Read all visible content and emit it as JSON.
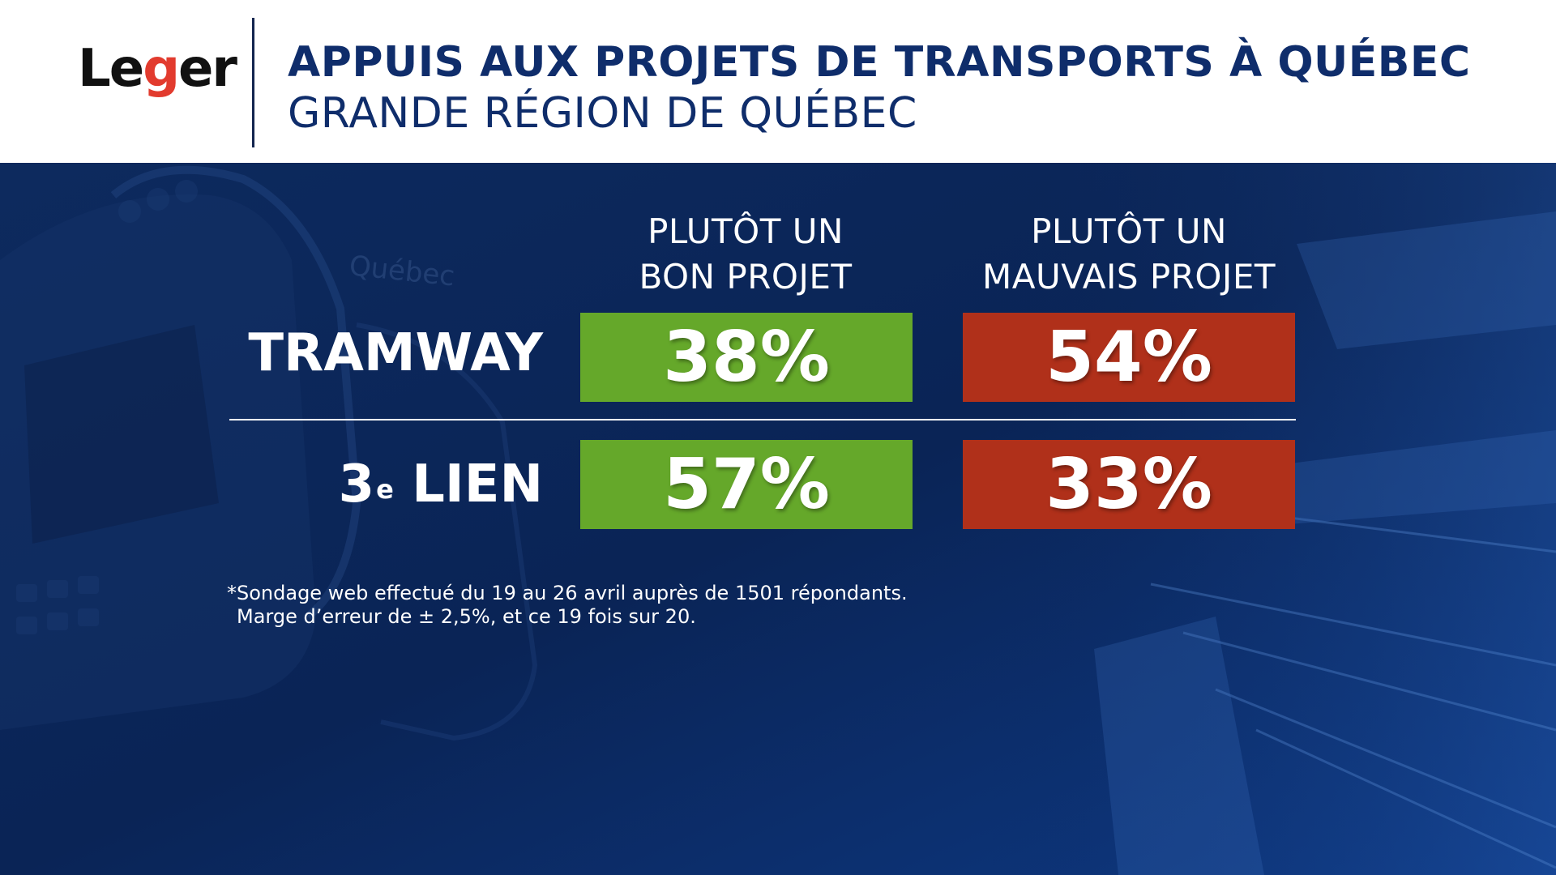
{
  "header": {
    "logo_text": "Leger",
    "logo_prefix": "Le",
    "logo_mark": "g",
    "logo_suffix": "er",
    "title": "APPUIS AUX PROJETS DE TRANSPORTS À QUÉBEC",
    "subtitle": "GRANDE RÉGION DE QUÉBEC"
  },
  "colors": {
    "good": "#65a82a",
    "bad": "#b0301a",
    "background": "#0a2456",
    "title": "#0f2d6b",
    "logo_accent": "#e23b2e"
  },
  "chart_data": {
    "type": "table",
    "title": "APPUIS AUX PROJETS DE TRANSPORTS À QUÉBEC",
    "subtitle": "GRANDE RÉGION DE QUÉBEC",
    "columns": [
      {
        "line1": "PLUTÔT UN",
        "line2": "BON PROJET"
      },
      {
        "line1": "PLUTÔT UN",
        "line2": "MAUVAIS PROJET"
      }
    ],
    "rows": [
      {
        "label": "TRAMWAY",
        "label_sup": "",
        "label_rest": "",
        "good": 38,
        "bad": 54,
        "good_text": "38%",
        "bad_text": "54%"
      },
      {
        "label": "3",
        "label_sup": "e",
        "label_rest": " LIEN",
        "good": 57,
        "bad": 33,
        "good_text": "57%",
        "bad_text": "33%"
      }
    ],
    "series": [
      {
        "name": "PLUTÔT UN BON PROJET",
        "values": [
          38,
          57
        ]
      },
      {
        "name": "PLUTÔT UN MAUVAIS PROJET",
        "values": [
          54,
          33
        ]
      }
    ],
    "categories": [
      "TRAMWAY",
      "3e LIEN"
    ],
    "unit": "%"
  },
  "footnote": {
    "line1": "*Sondage web effectué du 19 au 26 avril auprès de 1501 répondants.",
    "line2": "Marge d’erreur de ± 2,5%, et ce 19 fois sur 20."
  },
  "background": {
    "tram_sign": "Québec"
  }
}
